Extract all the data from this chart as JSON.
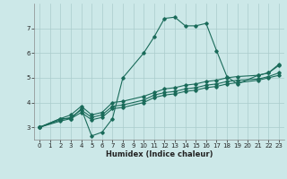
{
  "xlabel": "Humidex (Indice chaleur)",
  "bg_color": "#cce8e8",
  "line_color": "#1a6b5a",
  "grid_color": "#aacccc",
  "xlim": [
    -0.5,
    23.5
  ],
  "ylim": [
    2.5,
    8.0
  ],
  "yticks": [
    3,
    4,
    5,
    6,
    7
  ],
  "xticks": [
    0,
    1,
    2,
    3,
    4,
    5,
    6,
    7,
    8,
    9,
    10,
    11,
    12,
    13,
    14,
    15,
    16,
    17,
    18,
    19,
    20,
    21,
    22,
    23
  ],
  "curve1_x": [
    0,
    2,
    3,
    4,
    5,
    6,
    7,
    8,
    10,
    11,
    12,
    13,
    14,
    15,
    16,
    17,
    18,
    19,
    21,
    22,
    23
  ],
  "curve1_y": [
    3.0,
    3.35,
    3.35,
    3.75,
    2.65,
    2.8,
    3.35,
    5.0,
    6.0,
    6.65,
    7.4,
    7.45,
    7.1,
    7.1,
    7.2,
    6.1,
    5.05,
    4.75,
    5.1,
    5.2,
    5.55
  ],
  "curve2_x": [
    0,
    2,
    3,
    4,
    5,
    6,
    7,
    8,
    10,
    11,
    12,
    13,
    14,
    15,
    16,
    17,
    18,
    19,
    21,
    22,
    23
  ],
  "curve2_y": [
    3.0,
    3.35,
    3.5,
    3.85,
    3.5,
    3.6,
    4.0,
    4.05,
    4.25,
    4.4,
    4.55,
    4.6,
    4.7,
    4.75,
    4.85,
    4.9,
    5.0,
    5.05,
    5.1,
    5.2,
    5.5
  ],
  "curve3_x": [
    0,
    2,
    3,
    4,
    5,
    6,
    7,
    8,
    10,
    11,
    12,
    13,
    14,
    15,
    16,
    17,
    18,
    19,
    21,
    22,
    23
  ],
  "curve3_y": [
    3.0,
    3.3,
    3.4,
    3.7,
    3.4,
    3.5,
    3.85,
    3.9,
    4.1,
    4.3,
    4.4,
    4.45,
    4.55,
    4.6,
    4.7,
    4.75,
    4.85,
    4.9,
    4.95,
    5.05,
    5.2
  ],
  "curve4_x": [
    0,
    2,
    3,
    4,
    5,
    6,
    7,
    8,
    10,
    11,
    12,
    13,
    14,
    15,
    16,
    17,
    18,
    19,
    21,
    22,
    23
  ],
  "curve4_y": [
    3.0,
    3.25,
    3.35,
    3.6,
    3.3,
    3.4,
    3.75,
    3.8,
    4.0,
    4.2,
    4.3,
    4.35,
    4.45,
    4.5,
    4.6,
    4.65,
    4.75,
    4.8,
    4.9,
    5.0,
    5.1
  ]
}
